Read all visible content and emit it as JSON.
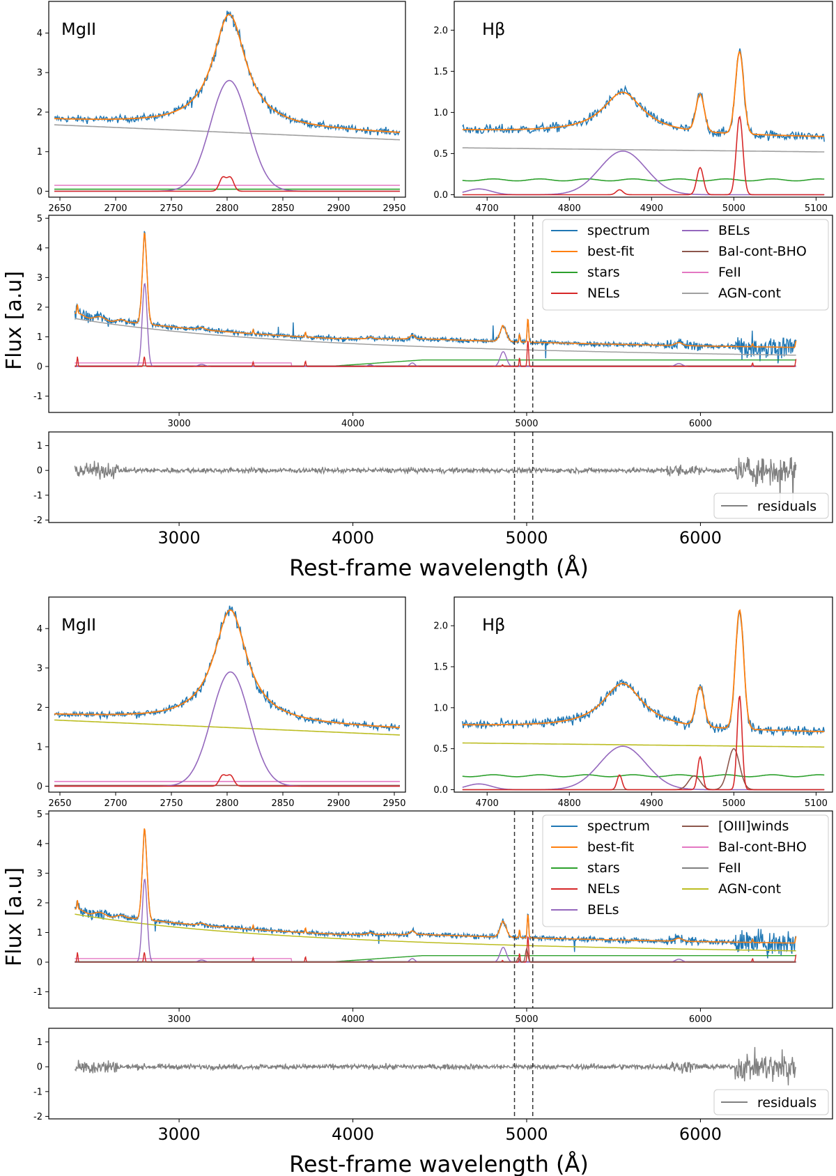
{
  "figure": {
    "ylabel": "Flux [a.u]",
    "xlabel": "Rest-frame wavelength (Å)"
  },
  "colors": {
    "spectrum": "#1f77b4",
    "best-fit": "#ff7f0e",
    "stars": "#2ca02c",
    "NELs": "#d62728",
    "BELs": "#9467bd",
    "[OIII]winds": "#8c564b",
    "Bal-cont-BHO": "#e377c2",
    "FeII": "#7f7f7f",
    "AGN-cont": "#bcbd22",
    "AGN-cont-top": "#a0a0a0",
    "baldamer": "#8c564b",
    "residuals": "#808080"
  },
  "chart_data": [
    {
      "id": "top-mgii",
      "type": "line",
      "title": "MgII",
      "xlim": [
        2640,
        2960
      ],
      "ylim": [
        -0.15,
        4.8
      ],
      "xticks": [
        2650,
        2700,
        2750,
        2800,
        2850,
        2900,
        2950
      ],
      "yticks": [
        0,
        1,
        2,
        3,
        4
      ],
      "series": [
        {
          "name": "AGN-cont",
          "x": [
            2645,
            2955
          ],
          "y": [
            1.68,
            1.3
          ]
        },
        {
          "name": "Bal-cont-BHO",
          "x": [
            2645,
            2955
          ],
          "y": [
            0.15,
            0.15
          ]
        },
        {
          "name": "stars",
          "x": [
            2645,
            2955
          ],
          "y": [
            0.05,
            0.05
          ]
        },
        {
          "name": "BELs",
          "peak": {
            "center": 2802,
            "height": 2.8,
            "width": 17
          }
        },
        {
          "name": "NELs",
          "peaks": [
            {
              "center": 2796,
              "height": 0.34,
              "width": 3
            },
            {
              "center": 2803,
              "height": 0.34,
              "width": 3
            }
          ]
        },
        {
          "name": "best-fit",
          "baseline": [
            1.8,
            1.45
          ],
          "peak": {
            "center": 2802,
            "height": 2.85,
            "width": 18
          }
        },
        {
          "name": "spectrum",
          "noise": 0.09
        }
      ]
    },
    {
      "id": "top-hbeta",
      "type": "line",
      "title": "Hβ",
      "xlim": [
        4660,
        5120
      ],
      "ylim": [
        -0.03,
        2.35
      ],
      "xticks": [
        4700,
        4800,
        4900,
        5000,
        5100
      ],
      "yticks": [
        0.0,
        0.5,
        1.0,
        1.5,
        2.0
      ],
      "series": [
        {
          "name": "AGN-cont",
          "x": [
            4670,
            5110
          ],
          "y": [
            0.57,
            0.52
          ]
        },
        {
          "name": "stars",
          "x": [
            4670,
            5110
          ],
          "y": [
            0.18,
            0.18
          ]
        },
        {
          "name": "BELs",
          "peaks": [
            {
              "center": 4865,
              "height": 0.53,
              "width": 28
            },
            {
              "center": 4690,
              "height": 0.07,
              "width": 15
            }
          ]
        },
        {
          "name": "NELs",
          "peaks": [
            {
              "center": 4861,
              "height": 0.06,
              "width": 4
            },
            {
              "center": 4959,
              "height": 0.33,
              "width": 4
            },
            {
              "center": 5007,
              "height": 0.95,
              "width": 4
            }
          ]
        },
        {
          "name": "best-fit",
          "baseline": [
            0.78,
            0.7
          ],
          "peaks": [
            {
              "center": 4865,
              "height": 0.5,
              "width": 30
            },
            {
              "center": 4959,
              "height": 0.45,
              "width": 5
            },
            {
              "center": 5007,
              "height": 1.0,
              "width": 5
            }
          ]
        },
        {
          "name": "spectrum",
          "noise": 0.06
        }
      ]
    },
    {
      "id": "top-main",
      "type": "line",
      "xlim": [
        2250,
        6760
      ],
      "ylim": [
        -1.55,
        5.1
      ],
      "xticks": [
        3000,
        4000,
        5000,
        6000
      ],
      "yticks": [
        -1,
        0,
        1,
        2,
        3,
        4,
        5
      ],
      "vlines": [
        4930,
        5035
      ],
      "legend": [
        "spectrum",
        "best-fit",
        "stars",
        "NELs",
        "BELs",
        "Bal-cont-BHO",
        "FeII",
        "AGN-cont"
      ],
      "legend_location": "top-right"
    },
    {
      "id": "top-resid",
      "type": "line",
      "xlim": [
        2250,
        6760
      ],
      "ylim": [
        -2.1,
        1.55
      ],
      "xticks": [
        3000,
        4000,
        5000,
        6000
      ],
      "yticks": [
        -2,
        -1,
        0,
        1
      ],
      "vlines": [
        4930,
        5035
      ],
      "legend": [
        "residuals"
      ],
      "legend_location": "bottom-right"
    },
    {
      "id": "bottom-mgii",
      "type": "line",
      "title": "MgII",
      "xlim": [
        2640,
        2960
      ],
      "ylim": [
        -0.15,
        4.8
      ],
      "xticks": [
        2650,
        2700,
        2750,
        2800,
        2850,
        2900,
        2950
      ],
      "yticks": [
        0,
        1,
        2,
        3,
        4
      ],
      "series": [
        {
          "name": "AGN-cont",
          "x": [
            2645,
            2955
          ],
          "y": [
            1.68,
            1.3
          ]
        },
        {
          "name": "Bal-cont-BHO",
          "x": [
            2645,
            2955
          ],
          "y": [
            0.12,
            0.12
          ]
        },
        {
          "name": "[OIII]winds",
          "x": [
            2645,
            2955
          ],
          "y": [
            0.02,
            0.02
          ]
        },
        {
          "name": "BELs",
          "peak": {
            "center": 2803,
            "height": 2.9,
            "width": 17
          }
        },
        {
          "name": "NELs",
          "peaks": [
            {
              "center": 2796,
              "height": 0.27,
              "width": 3
            },
            {
              "center": 2803,
              "height": 0.27,
              "width": 3
            }
          ]
        },
        {
          "name": "best-fit",
          "baseline": [
            1.8,
            1.45
          ],
          "peak": {
            "center": 2803,
            "height": 2.85,
            "width": 18
          }
        },
        {
          "name": "spectrum",
          "noise": 0.09
        }
      ]
    },
    {
      "id": "bottom-hbeta",
      "type": "line",
      "title": "Hβ",
      "xlim": [
        4660,
        5120
      ],
      "ylim": [
        -0.03,
        2.35
      ],
      "xticks": [
        4700,
        4800,
        4900,
        5000,
        5100
      ],
      "yticks": [
        0.0,
        0.5,
        1.0,
        1.5,
        2.0
      ],
      "series": [
        {
          "name": "AGN-cont",
          "x": [
            4670,
            5110
          ],
          "y": [
            0.57,
            0.52
          ]
        },
        {
          "name": "stars",
          "x": [
            4670,
            5110
          ],
          "y": [
            0.17,
            0.17
          ]
        },
        {
          "name": "BELs",
          "peaks": [
            {
              "center": 4865,
              "height": 0.53,
              "width": 28
            },
            {
              "center": 4690,
              "height": 0.07,
              "width": 15
            }
          ]
        },
        {
          "name": "[OIII]winds",
          "peaks": [
            {
              "center": 4952,
              "height": 0.17,
              "width": 7
            },
            {
              "center": 5000,
              "height": 0.5,
              "width": 7
            }
          ]
        },
        {
          "name": "NELs",
          "peaks": [
            {
              "center": 4861,
              "height": 0.18,
              "width": 3
            },
            {
              "center": 4959,
              "height": 0.4,
              "width": 3
            },
            {
              "center": 5007,
              "height": 1.15,
              "width": 3
            }
          ]
        },
        {
          "name": "best-fit",
          "baseline": [
            0.78,
            0.7
          ],
          "peaks": [
            {
              "center": 4865,
              "height": 0.55,
              "width": 30
            },
            {
              "center": 4959,
              "height": 0.48,
              "width": 5
            },
            {
              "center": 5007,
              "height": 1.45,
              "width": 5
            }
          ]
        },
        {
          "name": "spectrum",
          "noise": 0.06
        }
      ]
    },
    {
      "id": "bottom-main",
      "type": "line",
      "xlim": [
        2250,
        6760
      ],
      "ylim": [
        -1.55,
        5.1
      ],
      "xticks": [
        3000,
        4000,
        5000,
        6000
      ],
      "yticks": [
        -1,
        0,
        1,
        2,
        3,
        4,
        5
      ],
      "vlines": [
        4930,
        5035
      ],
      "legend": [
        "spectrum",
        "best-fit",
        "stars",
        "NELs",
        "BELs",
        "[OIII]winds",
        "Bal-cont-BHO",
        "FeII",
        "AGN-cont"
      ],
      "legend_location": "top-right"
    },
    {
      "id": "bottom-resid",
      "type": "line",
      "xlim": [
        2250,
        6760
      ],
      "ylim": [
        -2.1,
        1.55
      ],
      "xticks": [
        3000,
        4000,
        5000,
        6000
      ],
      "yticks": [
        -2,
        -1,
        0,
        1
      ],
      "vlines": [
        4930,
        5035
      ],
      "legend": [
        "residuals"
      ],
      "legend_location": "bottom-right"
    }
  ]
}
